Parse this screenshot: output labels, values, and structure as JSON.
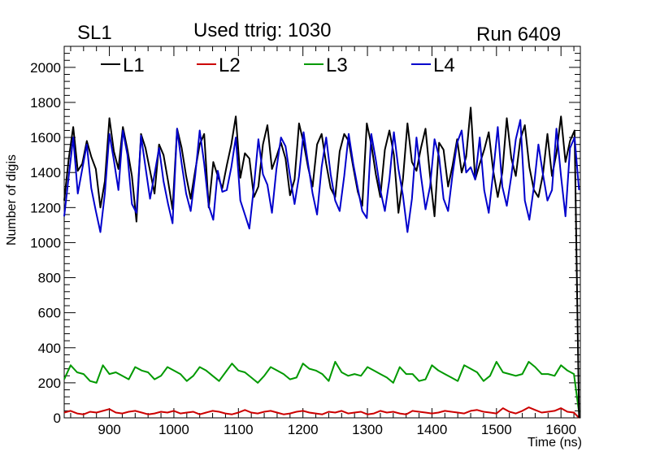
{
  "chart_data": {
    "type": "line",
    "title_left": "SL1",
    "title_center": "Used ttrig: 1030",
    "title_right": "Run 6409",
    "xlabel": "Time (ns)",
    "ylabel": "Number of digis",
    "xlim": [
      830,
      1630
    ],
    "ylim": [
      0,
      2120
    ],
    "x_ticks": [
      900,
      1000,
      1100,
      1200,
      1300,
      1400,
      1500,
      1600
    ],
    "x_tick_labels": [
      "900",
      "1000",
      "1100",
      "1200",
      "1300",
      "1400",
      "1500",
      "1600"
    ],
    "y_ticks": [
      0,
      200,
      400,
      600,
      800,
      1000,
      1200,
      1400,
      1600,
      1800,
      2000
    ],
    "y_tick_labels": [
      "0",
      "200",
      "400",
      "600",
      "800",
      "1000",
      "1200",
      "1400",
      "1600",
      "1800",
      "2000"
    ],
    "legend_position": "top",
    "series": [
      {
        "name": "L1",
        "color": "#000000",
        "x": [
          830,
          837,
          844,
          851,
          858,
          865,
          872,
          879,
          886,
          893,
          900,
          907,
          914,
          921,
          928,
          935,
          942,
          949,
          956,
          963,
          970,
          977,
          984,
          991,
          998,
          1005,
          1012,
          1019,
          1026,
          1033,
          1040,
          1047,
          1054,
          1061,
          1068,
          1075,
          1082,
          1089,
          1096,
          1103,
          1110,
          1117,
          1124,
          1131,
          1138,
          1145,
          1152,
          1159,
          1166,
          1173,
          1180,
          1187,
          1194,
          1201,
          1208,
          1215,
          1222,
          1229,
          1236,
          1243,
          1250,
          1257,
          1264,
          1271,
          1278,
          1285,
          1292,
          1299,
          1306,
          1313,
          1320,
          1327,
          1334,
          1341,
          1348,
          1355,
          1362,
          1369,
          1376,
          1383,
          1390,
          1397,
          1404,
          1411,
          1418,
          1425,
          1432,
          1439,
          1446,
          1453,
          1460,
          1467,
          1474,
          1481,
          1488,
          1495,
          1502,
          1509,
          1516,
          1523,
          1530,
          1537,
          1544,
          1551,
          1558,
          1565,
          1572,
          1579,
          1586,
          1593,
          1600,
          1607,
          1614,
          1621,
          1628
        ],
        "values": [
          1240,
          1480,
          1660,
          1410,
          1450,
          1580,
          1490,
          1420,
          1200,
          1350,
          1710,
          1520,
          1420,
          1660,
          1530,
          1380,
          1120,
          1620,
          1540,
          1410,
          1280,
          1560,
          1500,
          1350,
          1190,
          1650,
          1540,
          1380,
          1250,
          1410,
          1560,
          1620,
          1200,
          1460,
          1380,
          1310,
          1440,
          1560,
          1720,
          1370,
          1510,
          1480,
          1260,
          1320,
          1560,
          1670,
          1420,
          1490,
          1570,
          1480,
          1270,
          1360,
          1680,
          1570,
          1430,
          1320,
          1560,
          1620,
          1450,
          1310,
          1260,
          1520,
          1620,
          1580,
          1430,
          1290,
          1210,
          1680,
          1560,
          1390,
          1260,
          1530,
          1640,
          1500,
          1170,
          1360,
          1680,
          1460,
          1410,
          1540,
          1650,
          1380,
          1150,
          1570,
          1530,
          1320,
          1440,
          1590,
          1400,
          1490,
          1770,
          1360,
          1450,
          1530,
          1630,
          1410,
          1260,
          1400,
          1710,
          1480,
          1380,
          1590,
          1670,
          1430,
          1300,
          1260,
          1390,
          1620,
          1380,
          1510,
          1720,
          1460,
          1580,
          1640,
          0
        ]
      },
      {
        "name": "L2",
        "color": "#cc0000",
        "x": [
          830,
          840,
          850,
          860,
          870,
          880,
          890,
          900,
          910,
          920,
          930,
          940,
          950,
          960,
          970,
          980,
          990,
          1000,
          1010,
          1020,
          1030,
          1040,
          1050,
          1060,
          1070,
          1080,
          1090,
          1100,
          1110,
          1120,
          1130,
          1140,
          1150,
          1160,
          1170,
          1180,
          1190,
          1200,
          1210,
          1220,
          1230,
          1240,
          1250,
          1260,
          1270,
          1280,
          1290,
          1300,
          1310,
          1320,
          1330,
          1340,
          1350,
          1360,
          1370,
          1380,
          1390,
          1400,
          1410,
          1420,
          1430,
          1440,
          1450,
          1460,
          1470,
          1480,
          1490,
          1500,
          1510,
          1520,
          1530,
          1540,
          1550,
          1560,
          1570,
          1580,
          1590,
          1600,
          1610,
          1620,
          1628
        ],
        "values": [
          30,
          40,
          25,
          20,
          35,
          30,
          40,
          50,
          30,
          25,
          35,
          40,
          30,
          20,
          25,
          35,
          30,
          40,
          25,
          30,
          35,
          20,
          30,
          40,
          35,
          25,
          20,
          30,
          45,
          30,
          25,
          35,
          40,
          30,
          20,
          25,
          35,
          40,
          30,
          25,
          20,
          35,
          30,
          40,
          25,
          30,
          35,
          20,
          25,
          40,
          30,
          35,
          25,
          20,
          40,
          35,
          30,
          25,
          30,
          40,
          35,
          30,
          25,
          40,
          45,
          35,
          30,
          25,
          55,
          35,
          25,
          40,
          60,
          45,
          30,
          35,
          40,
          55,
          35,
          30,
          0
        ]
      },
      {
        "name": "L3",
        "color": "#009900",
        "x": [
          830,
          840,
          850,
          860,
          870,
          880,
          890,
          900,
          910,
          920,
          930,
          940,
          950,
          960,
          970,
          980,
          990,
          1000,
          1010,
          1020,
          1030,
          1040,
          1050,
          1060,
          1070,
          1080,
          1090,
          1100,
          1110,
          1120,
          1130,
          1140,
          1150,
          1160,
          1170,
          1180,
          1190,
          1200,
          1210,
          1220,
          1230,
          1240,
          1250,
          1260,
          1270,
          1280,
          1290,
          1300,
          1310,
          1320,
          1330,
          1340,
          1350,
          1360,
          1370,
          1380,
          1390,
          1400,
          1410,
          1420,
          1430,
          1440,
          1450,
          1460,
          1470,
          1480,
          1490,
          1500,
          1510,
          1520,
          1530,
          1540,
          1550,
          1560,
          1570,
          1580,
          1590,
          1600,
          1610,
          1620,
          1628
        ],
        "values": [
          220,
          300,
          260,
          250,
          210,
          200,
          300,
          250,
          260,
          240,
          220,
          290,
          270,
          260,
          220,
          240,
          290,
          270,
          250,
          210,
          240,
          290,
          270,
          240,
          210,
          260,
          310,
          270,
          260,
          230,
          200,
          240,
          290,
          270,
          250,
          220,
          230,
          310,
          280,
          270,
          250,
          210,
          320,
          260,
          240,
          250,
          240,
          290,
          270,
          250,
          230,
          200,
          290,
          250,
          250,
          210,
          220,
          300,
          270,
          250,
          230,
          210,
          300,
          280,
          260,
          210,
          240,
          320,
          260,
          250,
          240,
          250,
          320,
          290,
          250,
          250,
          240,
          300,
          270,
          250,
          30
        ]
      },
      {
        "name": "L4",
        "color": "#0000cc",
        "x": [
          830,
          837,
          844,
          851,
          858,
          865,
          872,
          879,
          886,
          893,
          900,
          907,
          914,
          921,
          928,
          935,
          942,
          949,
          956,
          963,
          970,
          977,
          984,
          991,
          998,
          1005,
          1012,
          1019,
          1026,
          1033,
          1040,
          1047,
          1054,
          1061,
          1068,
          1075,
          1082,
          1089,
          1096,
          1103,
          1110,
          1117,
          1124,
          1131,
          1138,
          1145,
          1152,
          1159,
          1166,
          1173,
          1180,
          1187,
          1194,
          1201,
          1208,
          1215,
          1222,
          1229,
          1236,
          1243,
          1250,
          1257,
          1264,
          1271,
          1278,
          1285,
          1292,
          1299,
          1306,
          1313,
          1320,
          1327,
          1334,
          1341,
          1348,
          1355,
          1362,
          1369,
          1376,
          1383,
          1390,
          1397,
          1404,
          1411,
          1418,
          1425,
          1432,
          1439,
          1446,
          1453,
          1460,
          1467,
          1474,
          1481,
          1488,
          1495,
          1502,
          1509,
          1516,
          1523,
          1530,
          1537,
          1544,
          1551,
          1558,
          1565,
          1572,
          1579,
          1586,
          1593,
          1600,
          1607,
          1614,
          1621,
          1628
        ],
        "values": [
          1150,
          1380,
          1600,
          1280,
          1420,
          1560,
          1310,
          1180,
          1060,
          1280,
          1620,
          1470,
          1300,
          1640,
          1500,
          1220,
          1170,
          1610,
          1430,
          1250,
          1390,
          1540,
          1350,
          1220,
          1110,
          1650,
          1450,
          1280,
          1180,
          1380,
          1640,
          1450,
          1210,
          1130,
          1410,
          1290,
          1300,
          1430,
          1600,
          1240,
          1160,
          1080,
          1320,
          1590,
          1390,
          1330,
          1170,
          1420,
          1600,
          1550,
          1380,
          1220,
          1380,
          1630,
          1450,
          1280,
          1160,
          1430,
          1600,
          1390,
          1240,
          1180,
          1380,
          1620,
          1450,
          1310,
          1180,
          1140,
          1620,
          1470,
          1300,
          1180,
          1360,
          1630,
          1420,
          1270,
          1060,
          1250,
          1600,
          1380,
          1190,
          1320,
          1590,
          1490,
          1250,
          1180,
          1390,
          1570,
          1640,
          1400,
          1430,
          1360,
          1600,
          1300,
          1170,
          1400,
          1660,
          1320,
          1210,
          1380,
          1590,
          1700,
          1240,
          1130,
          1320,
          1560,
          1390,
          1240,
          1300,
          1650,
          1380,
          1150,
          1540,
          1600,
          1300
        ]
      }
    ]
  }
}
